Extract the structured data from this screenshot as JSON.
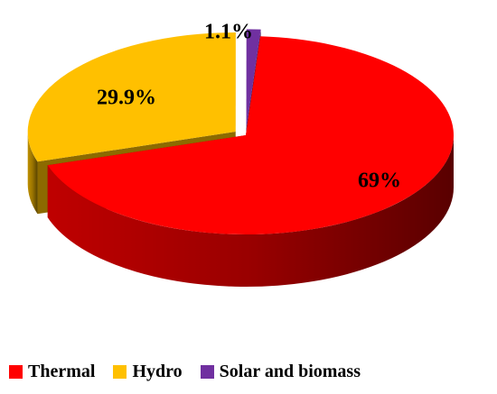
{
  "chart_data": {
    "type": "pie",
    "style": "3d-exploded",
    "title": "",
    "categories": [
      "Thermal",
      "Hydro",
      "Solar and biomass"
    ],
    "values": [
      69,
      29.9,
      1.1
    ],
    "data_labels": [
      "69%",
      "29.9%",
      "1.1%"
    ],
    "colors": [
      "#ff0000",
      "#ffc000",
      "#7030a0"
    ],
    "legend_position": "bottom"
  },
  "legend": {
    "items": [
      {
        "label": "Thermal",
        "color": "#ff0000"
      },
      {
        "label": "Hydro",
        "color": "#ffc000"
      },
      {
        "label": "Solar and biomass",
        "color": "#7030a0"
      }
    ]
  }
}
